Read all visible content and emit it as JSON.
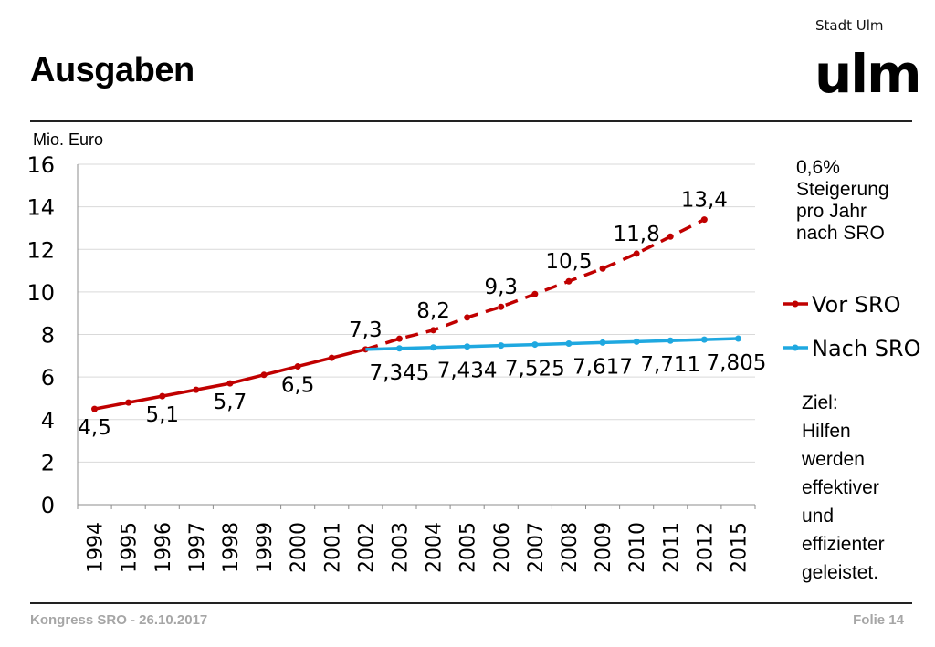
{
  "header": {
    "title": "Ausgaben",
    "brand_small": "Stadt Ulm",
    "brand_big": "ulm"
  },
  "footer": {
    "left": "Kongress SRO - 26.10.2017",
    "right": "Folie 14"
  },
  "notes": {
    "top": [
      "0,6%",
      "Steigerung",
      "pro Jahr",
      "nach SRO"
    ],
    "bottom": [
      "Ziel:",
      "Hilfen",
      "werden",
      "effektiver",
      "und",
      "effizienter",
      "geleistet."
    ]
  },
  "chart_data": {
    "type": "line",
    "title": "",
    "unit_label": "Mio. Euro",
    "ylim": [
      0,
      16
    ],
    "yticks": [
      "0",
      "2",
      "4",
      "6",
      "8",
      "10",
      "12",
      "14",
      "16"
    ],
    "categories": [
      "1994",
      "1995",
      "1996",
      "1997",
      "1998",
      "1999",
      "2000",
      "2001",
      "2002",
      "2003",
      "2004",
      "2005",
      "2006",
      "2007",
      "2008",
      "2009",
      "2010",
      "2011",
      "2012",
      "2015"
    ],
    "grid": "horizontal",
    "legend_position": "right",
    "series": [
      {
        "name": "Vor SRO",
        "color": "#c00000",
        "values": [
          4.5,
          4.8,
          5.1,
          5.4,
          5.7,
          6.1,
          6.5,
          6.9,
          7.3,
          7.8,
          8.2,
          8.8,
          9.3,
          9.9,
          10.5,
          11.1,
          11.8,
          12.6,
          13.4,
          null
        ],
        "solid_until_index": 8
      },
      {
        "name": "Nach SRO",
        "color": "#1fa8e0",
        "values": [
          null,
          null,
          null,
          null,
          null,
          null,
          null,
          null,
          7.3,
          7.345,
          7.39,
          7.434,
          7.48,
          7.525,
          7.57,
          7.617,
          7.66,
          7.711,
          7.76,
          7.805
        ]
      }
    ],
    "data_labels": [
      {
        "series": 0,
        "index": 0,
        "text": "4,5"
      },
      {
        "series": 0,
        "index": 2,
        "text": "5,1"
      },
      {
        "series": 0,
        "index": 4,
        "text": "5,7"
      },
      {
        "series": 0,
        "index": 6,
        "text": "6,5"
      },
      {
        "series": 0,
        "index": 8,
        "text": "7,3"
      },
      {
        "series": 0,
        "index": 10,
        "text": "8,2"
      },
      {
        "series": 0,
        "index": 12,
        "text": "9,3"
      },
      {
        "series": 0,
        "index": 14,
        "text": "10,5"
      },
      {
        "series": 0,
        "index": 16,
        "text": "11,8"
      },
      {
        "series": 0,
        "index": 18,
        "text": "13,4"
      },
      {
        "series": 1,
        "index": 9,
        "text": "7,345"
      },
      {
        "series": 1,
        "index": 11,
        "text": "7,434"
      },
      {
        "series": 1,
        "index": 13,
        "text": "7,525"
      },
      {
        "series": 1,
        "index": 15,
        "text": "7,617"
      },
      {
        "series": 1,
        "index": 17,
        "text": "7,711"
      },
      {
        "series": 1,
        "index": 19,
        "text": "7,805"
      }
    ]
  }
}
